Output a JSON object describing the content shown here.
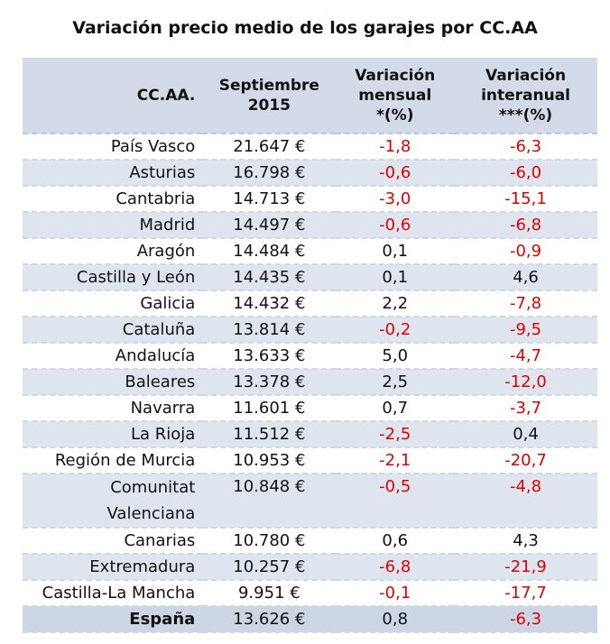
{
  "chart_data": {
    "type": "table",
    "title": "Variación precio medio de los garajes por CC.AA",
    "columns": [
      "CC.AA.",
      "Septiembre 2015",
      "Variación mensual *(%)",
      "Variación interanual ***(%)"
    ],
    "rows": [
      [
        "País Vasco",
        "21.647 €",
        "-1,8",
        "-6,3"
      ],
      [
        "Asturias",
        "16.798 €",
        "-0,6",
        "-6,0"
      ],
      [
        "Cantabria",
        "14.713 €",
        "-3,0",
        "-15,1"
      ],
      [
        "Madrid",
        "14.497 €",
        "-0,6",
        "-6,8"
      ],
      [
        "Aragón",
        "14.484 €",
        "0,1",
        "-0,9"
      ],
      [
        "Castilla y León",
        "14.435 €",
        "0,1",
        "4,6"
      ],
      [
        "Galicia",
        "14.432 €",
        "2,2",
        "-7,8"
      ],
      [
        "Cataluña",
        "13.814 €",
        "-0,2",
        "-9,5"
      ],
      [
        "Andalucía",
        "13.633 €",
        "5,0",
        "-4,7"
      ],
      [
        "Baleares",
        "13.378 €",
        "2,5",
        "-12,0"
      ],
      [
        "Navarra",
        "11.601 €",
        "0,7",
        "-3,7"
      ],
      [
        "La Rioja",
        "11.512 €",
        "-2,5",
        "0,4"
      ],
      [
        "Región de Murcia",
        "10.953 €",
        "-2,1",
        "-20,7"
      ],
      [
        "Comunitat Valenciana",
        "10.848 €",
        "-0,5",
        "-4,8"
      ],
      [
        "Canarias",
        "10.780 €",
        "0,6",
        "4,3"
      ],
      [
        "Extremadura",
        "10.257 €",
        "-6,8",
        "-21,9"
      ],
      [
        "Castilla-La Mancha",
        "9.951 €",
        "-0,1",
        "-17,7"
      ],
      [
        "España",
        "13.626 €",
        "0,8",
        "-6,3"
      ]
    ],
    "colors": {
      "negative": "#e00000",
      "header_bg": "#d4dbe8",
      "alt_row_bg": "#dfe5ef",
      "total_row_bg": "#ccd5e4"
    }
  }
}
